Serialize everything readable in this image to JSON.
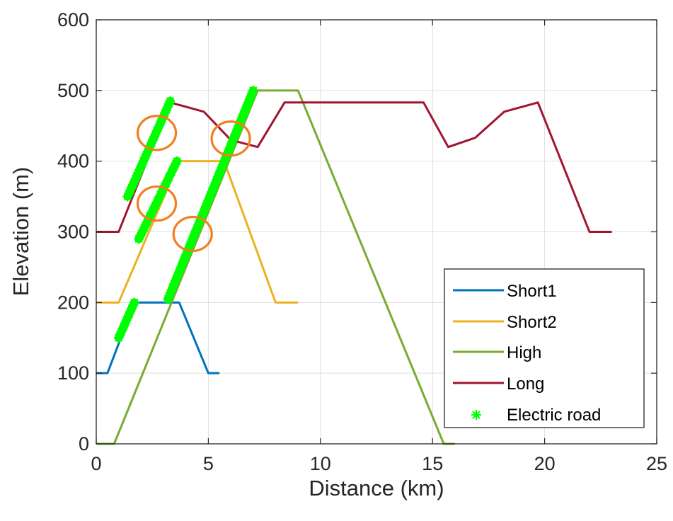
{
  "chart_data": {
    "type": "line",
    "xlabel": "Distance (km)",
    "ylabel": "Elevation (m)",
    "xlim": [
      0,
      25
    ],
    "ylim": [
      0,
      600
    ],
    "xticks": [
      "0",
      "5",
      "10",
      "15",
      "20",
      "25"
    ],
    "yticks": [
      "0",
      "100",
      "200",
      "300",
      "400",
      "500",
      "600"
    ],
    "grid": true,
    "legend_position": "bottom-right",
    "series": [
      {
        "name": "Short1",
        "color": "#0072BD",
        "x": [
          0,
          0.5,
          1.7,
          3.7,
          5.0,
          5.5
        ],
        "y": [
          100,
          100,
          200,
          200,
          100,
          100
        ]
      },
      {
        "name": "Short2",
        "color": "#EDB120",
        "x": [
          0,
          1.0,
          3.7,
          5.7,
          8.0,
          9.0
        ],
        "y": [
          200,
          200,
          400,
          400,
          200,
          200
        ]
      },
      {
        "name": "High",
        "color": "#77AC30",
        "x": [
          0,
          0.8,
          7.2,
          9.0,
          15.5,
          16.0
        ],
        "y": [
          0,
          0,
          500,
          500,
          0,
          0
        ]
      },
      {
        "name": "Long",
        "color": "#A2142F",
        "x": [
          0,
          1.0,
          3.3,
          4.8,
          6.0,
          7.2,
          8.4,
          14.6,
          15.7,
          16.9,
          18.2,
          19.7,
          22.0,
          23.0
        ],
        "y": [
          300,
          300,
          483,
          470,
          430,
          420,
          483,
          483,
          420,
          433,
          470,
          483,
          300,
          300
        ]
      }
    ],
    "electric_road": {
      "name": "Electric road",
      "color": "#00FF00",
      "segments": [
        [
          [
            1.0,
            150
          ],
          [
            1.7,
            200
          ]
        ],
        [
          [
            1.4,
            350
          ],
          [
            3.3,
            485
          ]
        ],
        [
          [
            1.9,
            290
          ],
          [
            3.6,
            400
          ]
        ],
        [
          [
            3.2,
            205
          ],
          [
            7.0,
            500
          ]
        ]
      ]
    },
    "highlight_circles": {
      "color": "#F27E1E",
      "centers": [
        [
          2.7,
          440
        ],
        [
          2.7,
          340
        ],
        [
          6.0,
          432
        ],
        [
          4.3,
          297
        ]
      ]
    }
  }
}
